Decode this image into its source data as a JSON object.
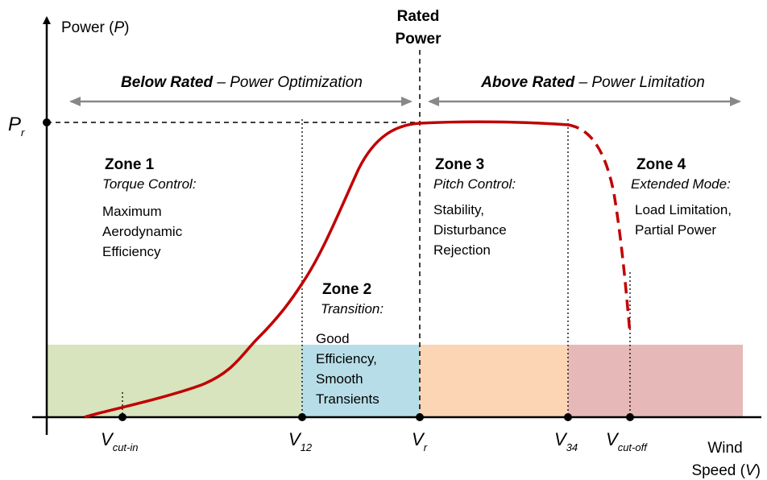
{
  "y_axis": {
    "parts": [
      "Power (",
      "P",
      ")"
    ]
  },
  "rated_power": [
    "Rated",
    "Power"
  ],
  "regions": [
    {
      "bold": "Below Rated",
      "rest": " – Power Optimization"
    },
    {
      "bold": "Above Rated",
      "rest": " – Power Limitation"
    }
  ],
  "rated_level": {
    "symbol": "P",
    "subscript": "r"
  },
  "zones": [
    {
      "title": "Zone 1",
      "mode": "Torque Control:",
      "lines": [
        "Maximum",
        "Aerodynamic",
        "Efficiency"
      ]
    },
    {
      "title": "Zone 2",
      "mode": "Transition:",
      "lines": [
        "Good",
        "Efficiency,",
        "Smooth",
        "Transients"
      ]
    },
    {
      "title": "Zone 3",
      "mode": "Pitch Control:",
      "lines": [
        "Stability,",
        "Disturbance",
        "Rejection"
      ]
    },
    {
      "title": "Zone 4",
      "mode": "Extended Mode:",
      "lines": [
        "Load Limitation,",
        "Partial Power"
      ]
    }
  ],
  "speeds": [
    {
      "symbol": "V",
      "subscript": "cut-in"
    },
    {
      "symbol": "V",
      "subscript": "12"
    },
    {
      "symbol": "V",
      "subscript": "r"
    },
    {
      "symbol": "V",
      "subscript": "34"
    },
    {
      "symbol": "V",
      "subscript": "cut-off"
    }
  ],
  "x_axis": {
    "line1": "Wind",
    "parts": [
      "Speed (",
      "V",
      ")"
    ]
  }
}
